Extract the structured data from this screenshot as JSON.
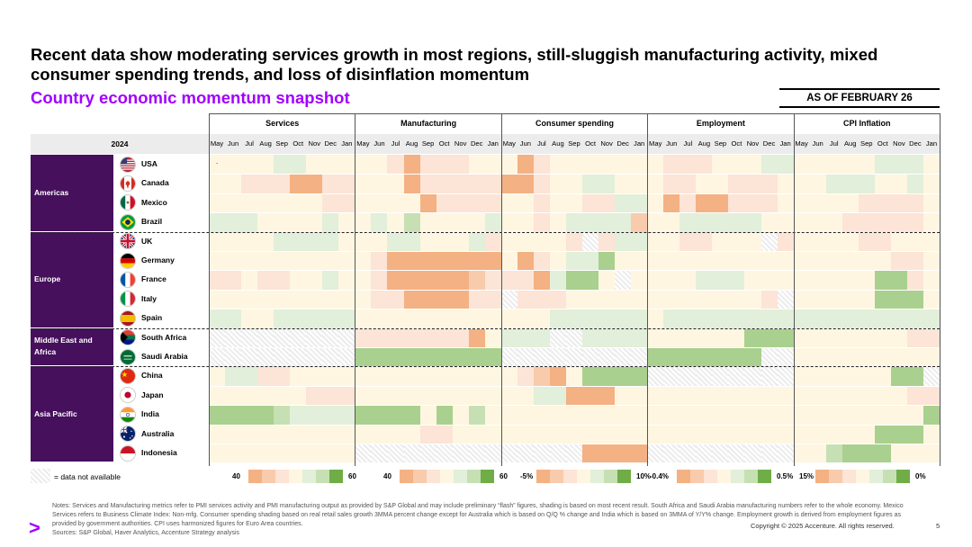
{
  "title": "Recent data show moderating services growth in most regions, still-sluggish manufacturing activity, mixed consumer spending trends, and loss of disinflation momentum",
  "subtitle": "Country economic momentum snapshot",
  "as_of": "AS OF FEBRUARY 26",
  "year_label": "2024",
  "metric_groups": [
    "Services",
    "Manufacturing",
    "Consumer spending",
    "Employment",
    "CPI Inflation"
  ],
  "months": [
    "May",
    "Jun",
    "Jul",
    "Aug",
    "Sep",
    "Oct",
    "Nov",
    "Dec",
    "Jan"
  ],
  "regions": [
    {
      "name": "Americas",
      "countries": [
        "USA",
        "Canada",
        "Mexico",
        "Brazil"
      ]
    },
    {
      "name": "Europe",
      "countries": [
        "UK",
        "Germany",
        "France",
        "Italy",
        "Spain"
      ]
    },
    {
      "name": "Middle East and Africa",
      "countries": [
        "South Africa",
        "Saudi Arabia"
      ]
    },
    {
      "name": "Asia Pacific",
      "countries": [
        "China",
        "Japan",
        "India",
        "Australia",
        "Indonesia"
      ]
    }
  ],
  "usa_dot": ".",
  "colors": {
    "na": "#e6e6e6",
    "low2": "#f4b183",
    "low1": "#f8cbad",
    "mid0": "#fce4d6",
    "mid1": "#fff2cc",
    "neutral": "#fef6e1",
    "hi1": "#e2efda",
    "hi2": "#c6e0b4",
    "hi3": "#a9d08e",
    "hi4": "#70ad47"
  },
  "heatmap": [
    "FFFFEEFFF FFMLMMMFF FLMFFFFFF FMMMFFFEE FFFFFEEEF",
    "FFMMMLLMM FFFLMMMMM LLMFFEEFD FMMFFMMMF FFEEEFFEF",
    "FFFFFFFMM FFFFLMMMM FFMFFMMEE FLMLLMMMF FFFFMMMMF",
    "EEEFFFFEF FEFGFFFFE FFMFEEEEK FFEEEEEFF FFFMMMMMF",
    "FFFFEEEEF FFEEFFFEM FFFFMNMEE FFMMFFFNM FFFFMMFFF",
    "FFFFFFFFF FMLLLLLLL FLMFEEHFF FFFFFFFFF FFFFFFMMF",
    "MMFMMFFEF FMLLLLLKM MMLEHHFNF FFFEEEFFF FFFFFHHMF",
    "FFFFFFFFF FMMLLLLMM NMMMFFFFF FFFFFFFMN FFFFFHHHF",
    "EEFFEEEEE FFFFFFFFF FFFEEEEEE FEEEEEEEE EEEEEEEEE",
    "NNNNNNNNN MMMMMMMLF EEENNEEEE FFFFFFHHH FFFFFFFMM",
    "NNNNNNNNN HHHHHHHHH NNNNNNNNN HHHHHHHNN FFFFFFFFF",
    "FEEMMFFFF FFFFFFFFF FMKLFHHHH NNNNNNNNN FFFFFFHHN",
    "FFFFFFMMM FFFFFFFFF FFEELLLFF FFFFFFFFF FFFFFFFMM",
    "HHHHGEEEE HHHHFHFGF FFFFFFFFF FFFFFFFFF FFFFFFFFH",
    "FFFFFFFFF FFFFMMFFF FFFFFFFFF FFFFFFFFF FFFFFHHHF",
    "FFFFFFFFF NNNNNNNNN NNNNNLLLL NNNNNNNNN FFGHHHFFF"
  ],
  "legend": [
    {
      "low": "40",
      "high": "60"
    },
    {
      "low": "40",
      "high": "60"
    },
    {
      "low": "-5%",
      "high": "10%"
    },
    {
      "low": "-0.4%",
      "high": "0.5%"
    },
    {
      "low": "15%",
      "high": "0%"
    }
  ],
  "na_label": "= data not available",
  "notes": "Notes: Services and Manufacturing metrics refer to PMI services activity and PMI manufacturing output as provided by S&P Global and may include preliminary “flash” figures, shading is based on most recent result. South Africa and Saudi Arabia manufacturing numbers refer to the whole economy. Mexico Services refers to Business Climate Index: Non-mfg. Consumer spending shading based on real retail sales growth 3MMA percent change except for Australia which is based on Q/Q % change and India which is based on 3MMA of Y/Y% change. Employment growth is derived from employment figures as provided by government authorities. CPI uses harmonized figures for Euro Area countries.",
  "sources": "Sources: S&P Global, Haver Analytics, Accenture Strategy analysis",
  "copyright": "Copyright © 2025 Accenture. All rights reserved.",
  "page_number": "5",
  "logo": ">"
}
